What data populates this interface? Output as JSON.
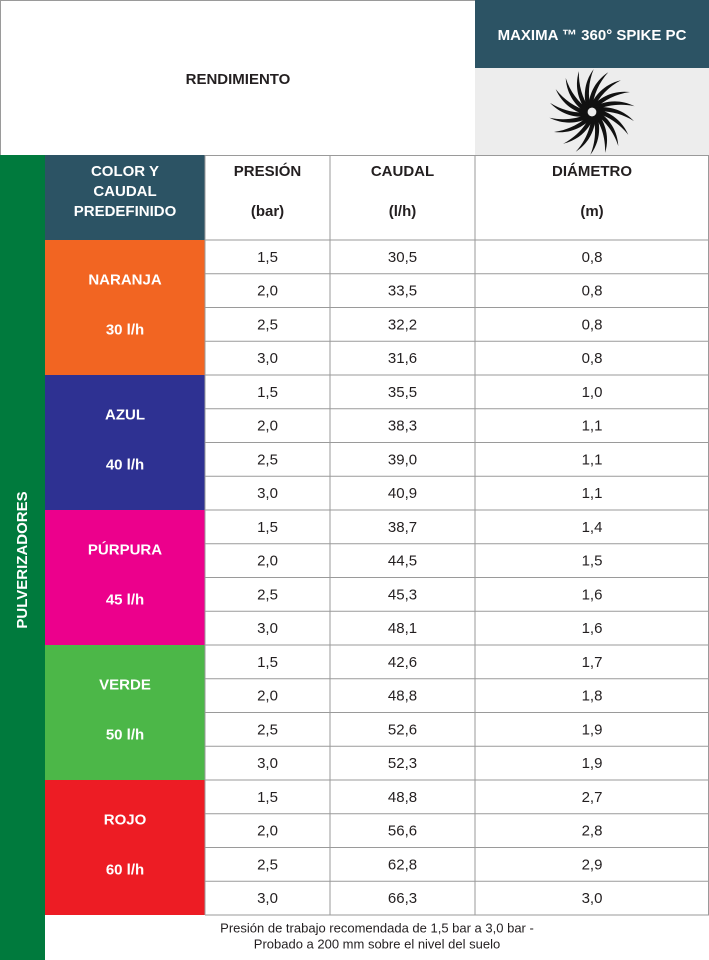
{
  "header": {
    "title": "RENDIMIENTO",
    "product": "MAXIMA ™ 360° SPIKE PC"
  },
  "side_label": "PULVERIZADORES",
  "columns": [
    {
      "lines": [
        "COLOR Y",
        "CAUDAL",
        "PREDEFINIDO"
      ]
    },
    {
      "title": "PRESIÓN",
      "unit": "(bar)"
    },
    {
      "title": "CAUDAL",
      "unit": "(l/h)"
    },
    {
      "title": "DIÁMETRO",
      "unit": "(m)"
    }
  ],
  "groups": [
    {
      "name": "NARANJA",
      "flow": "30 l/h",
      "color": "#f26522",
      "rows": [
        [
          "1,5",
          "30,5",
          "0,8"
        ],
        [
          "2,0",
          "33,5",
          "0,8"
        ],
        [
          "2,5",
          "32,2",
          "0,8"
        ],
        [
          "3,0",
          "31,6",
          "0,8"
        ]
      ]
    },
    {
      "name": "AZUL",
      "flow": "40 l/h",
      "color": "#2e3192",
      "rows": [
        [
          "1,5",
          "35,5",
          "1,0"
        ],
        [
          "2,0",
          "38,3",
          "1,1"
        ],
        [
          "2,5",
          "39,0",
          "1,1"
        ],
        [
          "3,0",
          "40,9",
          "1,1"
        ]
      ]
    },
    {
      "name": "PÚRPURA",
      "flow": "45 l/h",
      "color": "#ec008c",
      "rows": [
        [
          "1,5",
          "38,7",
          "1,4"
        ],
        [
          "2,0",
          "44,5",
          "1,5"
        ],
        [
          "2,5",
          "45,3",
          "1,6"
        ],
        [
          "3,0",
          "48,1",
          "1,6"
        ]
      ]
    },
    {
      "name": "VERDE",
      "flow": "50 l/h",
      "color": "#4cb748",
      "rows": [
        [
          "1,5",
          "42,6",
          "1,7"
        ],
        [
          "2,0",
          "48,8",
          "1,8"
        ],
        [
          "2,5",
          "52,6",
          "1,9"
        ],
        [
          "3,0",
          "52,3",
          "1,9"
        ]
      ]
    },
    {
      "name": "ROJO",
      "flow": "60 l/h",
      "color": "#ed1c24",
      "rows": [
        [
          "1,5",
          "48,8",
          "2,7"
        ],
        [
          "2,0",
          "56,6",
          "2,8"
        ],
        [
          "2,5",
          "62,8",
          "2,9"
        ],
        [
          "3,0",
          "66,3",
          "3,0"
        ]
      ]
    }
  ],
  "footnote": [
    "Presión de trabajo recomendada de 1,5 bar a 3,0 bar -",
    "Probado a 200 mm sobre el nivel del suelo"
  ]
}
